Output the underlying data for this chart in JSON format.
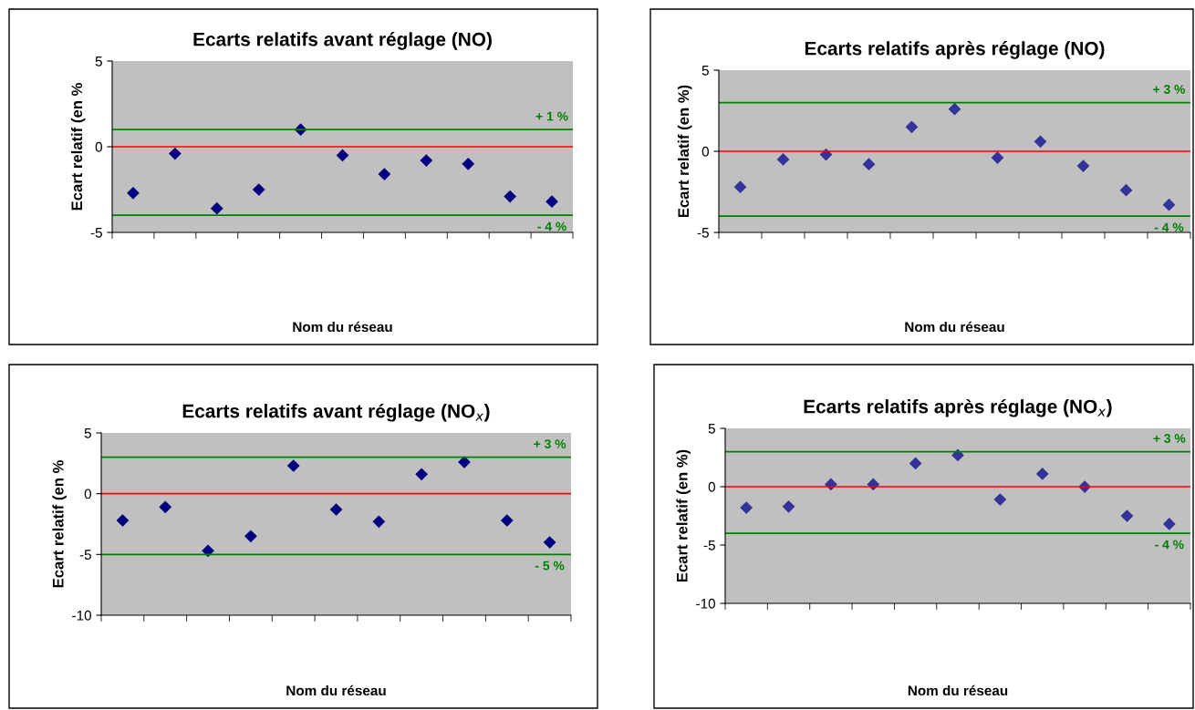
{
  "chart_data": [
    {
      "type": "scatter",
      "title": "Ecarts relatifs avant réglage (NO)",
      "xlabel": "Nom du réseau",
      "ylabel": "Ecart relatif (en %",
      "categories": [
        null,
        null,
        null,
        null,
        null,
        null,
        null,
        null,
        null,
        null,
        null
      ],
      "series": [
        {
          "color": "#000080",
          "values": [
            -2.7,
            -0.4,
            -3.6,
            -2.5,
            1.0,
            -0.5,
            -1.6,
            -0.8,
            -1.0,
            -2.9,
            -3.2
          ]
        }
      ],
      "ylim": [
        -5,
        5
      ],
      "yticks": [
        -5,
        0,
        5
      ],
      "marker": "diamond",
      "grid": false,
      "legend": false,
      "ref_lines": [
        {
          "axis": "y",
          "value": 1,
          "label": "+ 1 %",
          "color": "#008000"
        },
        {
          "axis": "y",
          "value": 0,
          "label": null,
          "color": "#ff0000"
        },
        {
          "axis": "y",
          "value": -4,
          "label": "- 4 %",
          "color": "#008000"
        }
      ]
    },
    {
      "type": "scatter",
      "title": "Ecarts relatifs après réglage (NO)",
      "xlabel": "Nom du réseau",
      "ylabel": "Ecart relatif (en %)",
      "categories": [
        null,
        null,
        null,
        null,
        null,
        null,
        null,
        null,
        null,
        null,
        null
      ],
      "series": [
        {
          "color": "#333399",
          "values": [
            -2.2,
            -0.5,
            -0.2,
            -0.8,
            1.5,
            2.6,
            -0.4,
            0.6,
            -0.9,
            -2.4,
            -3.3
          ]
        }
      ],
      "ylim": [
        -5,
        5
      ],
      "yticks": [
        -5,
        0,
        5
      ],
      "marker": "diamond",
      "grid": false,
      "legend": false,
      "ref_lines": [
        {
          "axis": "y",
          "value": 3,
          "label": "+ 3 %",
          "color": "#008000"
        },
        {
          "axis": "y",
          "value": 0,
          "label": null,
          "color": "#ff0000"
        },
        {
          "axis": "y",
          "value": -4,
          "label": "- 4 %",
          "color": "#008000"
        }
      ]
    },
    {
      "type": "scatter",
      "title": "Ecarts relatifs avant réglage (NO$_{x}$)",
      "xlabel": "Nom du réseau",
      "ylabel": "Ecart relatif (en %",
      "categories": [
        null,
        null,
        null,
        null,
        null,
        null,
        null,
        null,
        null,
        null,
        null
      ],
      "series": [
        {
          "color": "#000080",
          "values": [
            -2.2,
            -1.1,
            -4.7,
            -3.5,
            2.3,
            -1.3,
            -2.3,
            1.6,
            2.6,
            -2.2,
            -4.0
          ]
        }
      ],
      "ylim": [
        -10,
        5
      ],
      "yticks": [
        -10,
        -5,
        0,
        5
      ],
      "marker": "diamond",
      "grid": false,
      "legend": false,
      "ref_lines": [
        {
          "axis": "y",
          "value": 3,
          "label": "+ 3 %",
          "color": "#008000"
        },
        {
          "axis": "y",
          "value": 0,
          "label": null,
          "color": "#ff0000"
        },
        {
          "axis": "y",
          "value": -5,
          "label": "- 5 %",
          "color": "#008000"
        }
      ]
    },
    {
      "type": "scatter",
      "title": "Ecarts relatifs après réglage (NO$_{x}$)",
      "xlabel": "Nom du réseau",
      "ylabel": "Ecart relatif (en %)",
      "categories": [
        null,
        null,
        null,
        null,
        null,
        null,
        null,
        null,
        null,
        null,
        null
      ],
      "series": [
        {
          "color": "#333399",
          "values": [
            -1.8,
            -1.7,
            0.2,
            0.2,
            2.0,
            2.7,
            -1.1,
            1.1,
            0.0,
            -2.5,
            -3.2
          ]
        }
      ],
      "ylim": [
        -10,
        5
      ],
      "yticks": [
        -10,
        -5,
        0,
        5
      ],
      "marker": "diamond",
      "grid": false,
      "legend": false,
      "ref_lines": [
        {
          "axis": "y",
          "value": 3,
          "label": "+ 3 %",
          "color": "#008000"
        },
        {
          "axis": "y",
          "value": 0,
          "label": null,
          "color": "#ff0000"
        },
        {
          "axis": "y",
          "value": -4,
          "label": "- 4 %",
          "color": "#008000"
        }
      ]
    }
  ]
}
